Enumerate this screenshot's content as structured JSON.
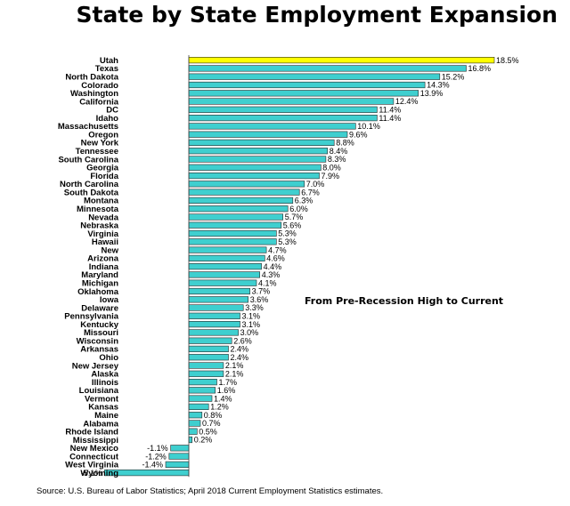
{
  "chart_data": {
    "type": "bar",
    "orientation": "horizontal",
    "title": "State by State Employment Expansion",
    "annotation": "From Pre-Recession High to Current",
    "source": "Source: U.S. Bureau of Labor Statistics; April 2018 Current Employment Statistics estimates.",
    "value_suffix": "%",
    "xlim": [
      -5.1,
      18.5
    ],
    "bar_color": "#3fcfcf",
    "highlight_color": "#ffff00",
    "highlight_category": "Utah",
    "categories": [
      "Utah",
      "Texas",
      "North Dakota",
      "Colorado",
      "Washington",
      "California",
      "DC",
      "Idaho",
      "Massachusetts",
      "Oregon",
      "New York",
      "Tennessee",
      "South Carolina",
      "Georgia",
      "Florida",
      "North Carolina",
      "South Dakota",
      "Montana",
      "Minnesota",
      "Nevada",
      "Nebraska",
      "Virginia",
      "Hawaii",
      "New",
      "Arizona",
      "Indiana",
      "Maryland",
      "Michigan",
      "Oklahoma",
      "Iowa",
      "Delaware",
      "Pennsylvania",
      "Kentucky",
      "Missouri",
      "Wisconsin",
      "Arkansas",
      "Ohio",
      "New Jersey",
      "Alaska",
      "Illinois",
      "Louisiana",
      "Vermont",
      "Kansas",
      "Maine",
      "Alabama",
      "Rhode Island",
      "Mississippi",
      "New Mexico",
      "Connecticut",
      "West Virginia",
      "Wyoming"
    ],
    "values": [
      18.5,
      16.8,
      15.2,
      14.3,
      13.9,
      12.4,
      11.4,
      11.4,
      10.1,
      9.6,
      8.8,
      8.4,
      8.3,
      8.0,
      7.9,
      7.0,
      6.7,
      6.3,
      6.0,
      5.7,
      5.6,
      5.3,
      5.3,
      4.7,
      4.6,
      4.4,
      4.3,
      4.1,
      3.7,
      3.6,
      3.3,
      3.1,
      3.1,
      3.0,
      2.6,
      2.4,
      2.4,
      2.1,
      2.1,
      1.7,
      1.6,
      1.4,
      1.2,
      0.8,
      0.7,
      0.5,
      0.2,
      -1.1,
      -1.2,
      -1.4,
      -5.1
    ]
  }
}
